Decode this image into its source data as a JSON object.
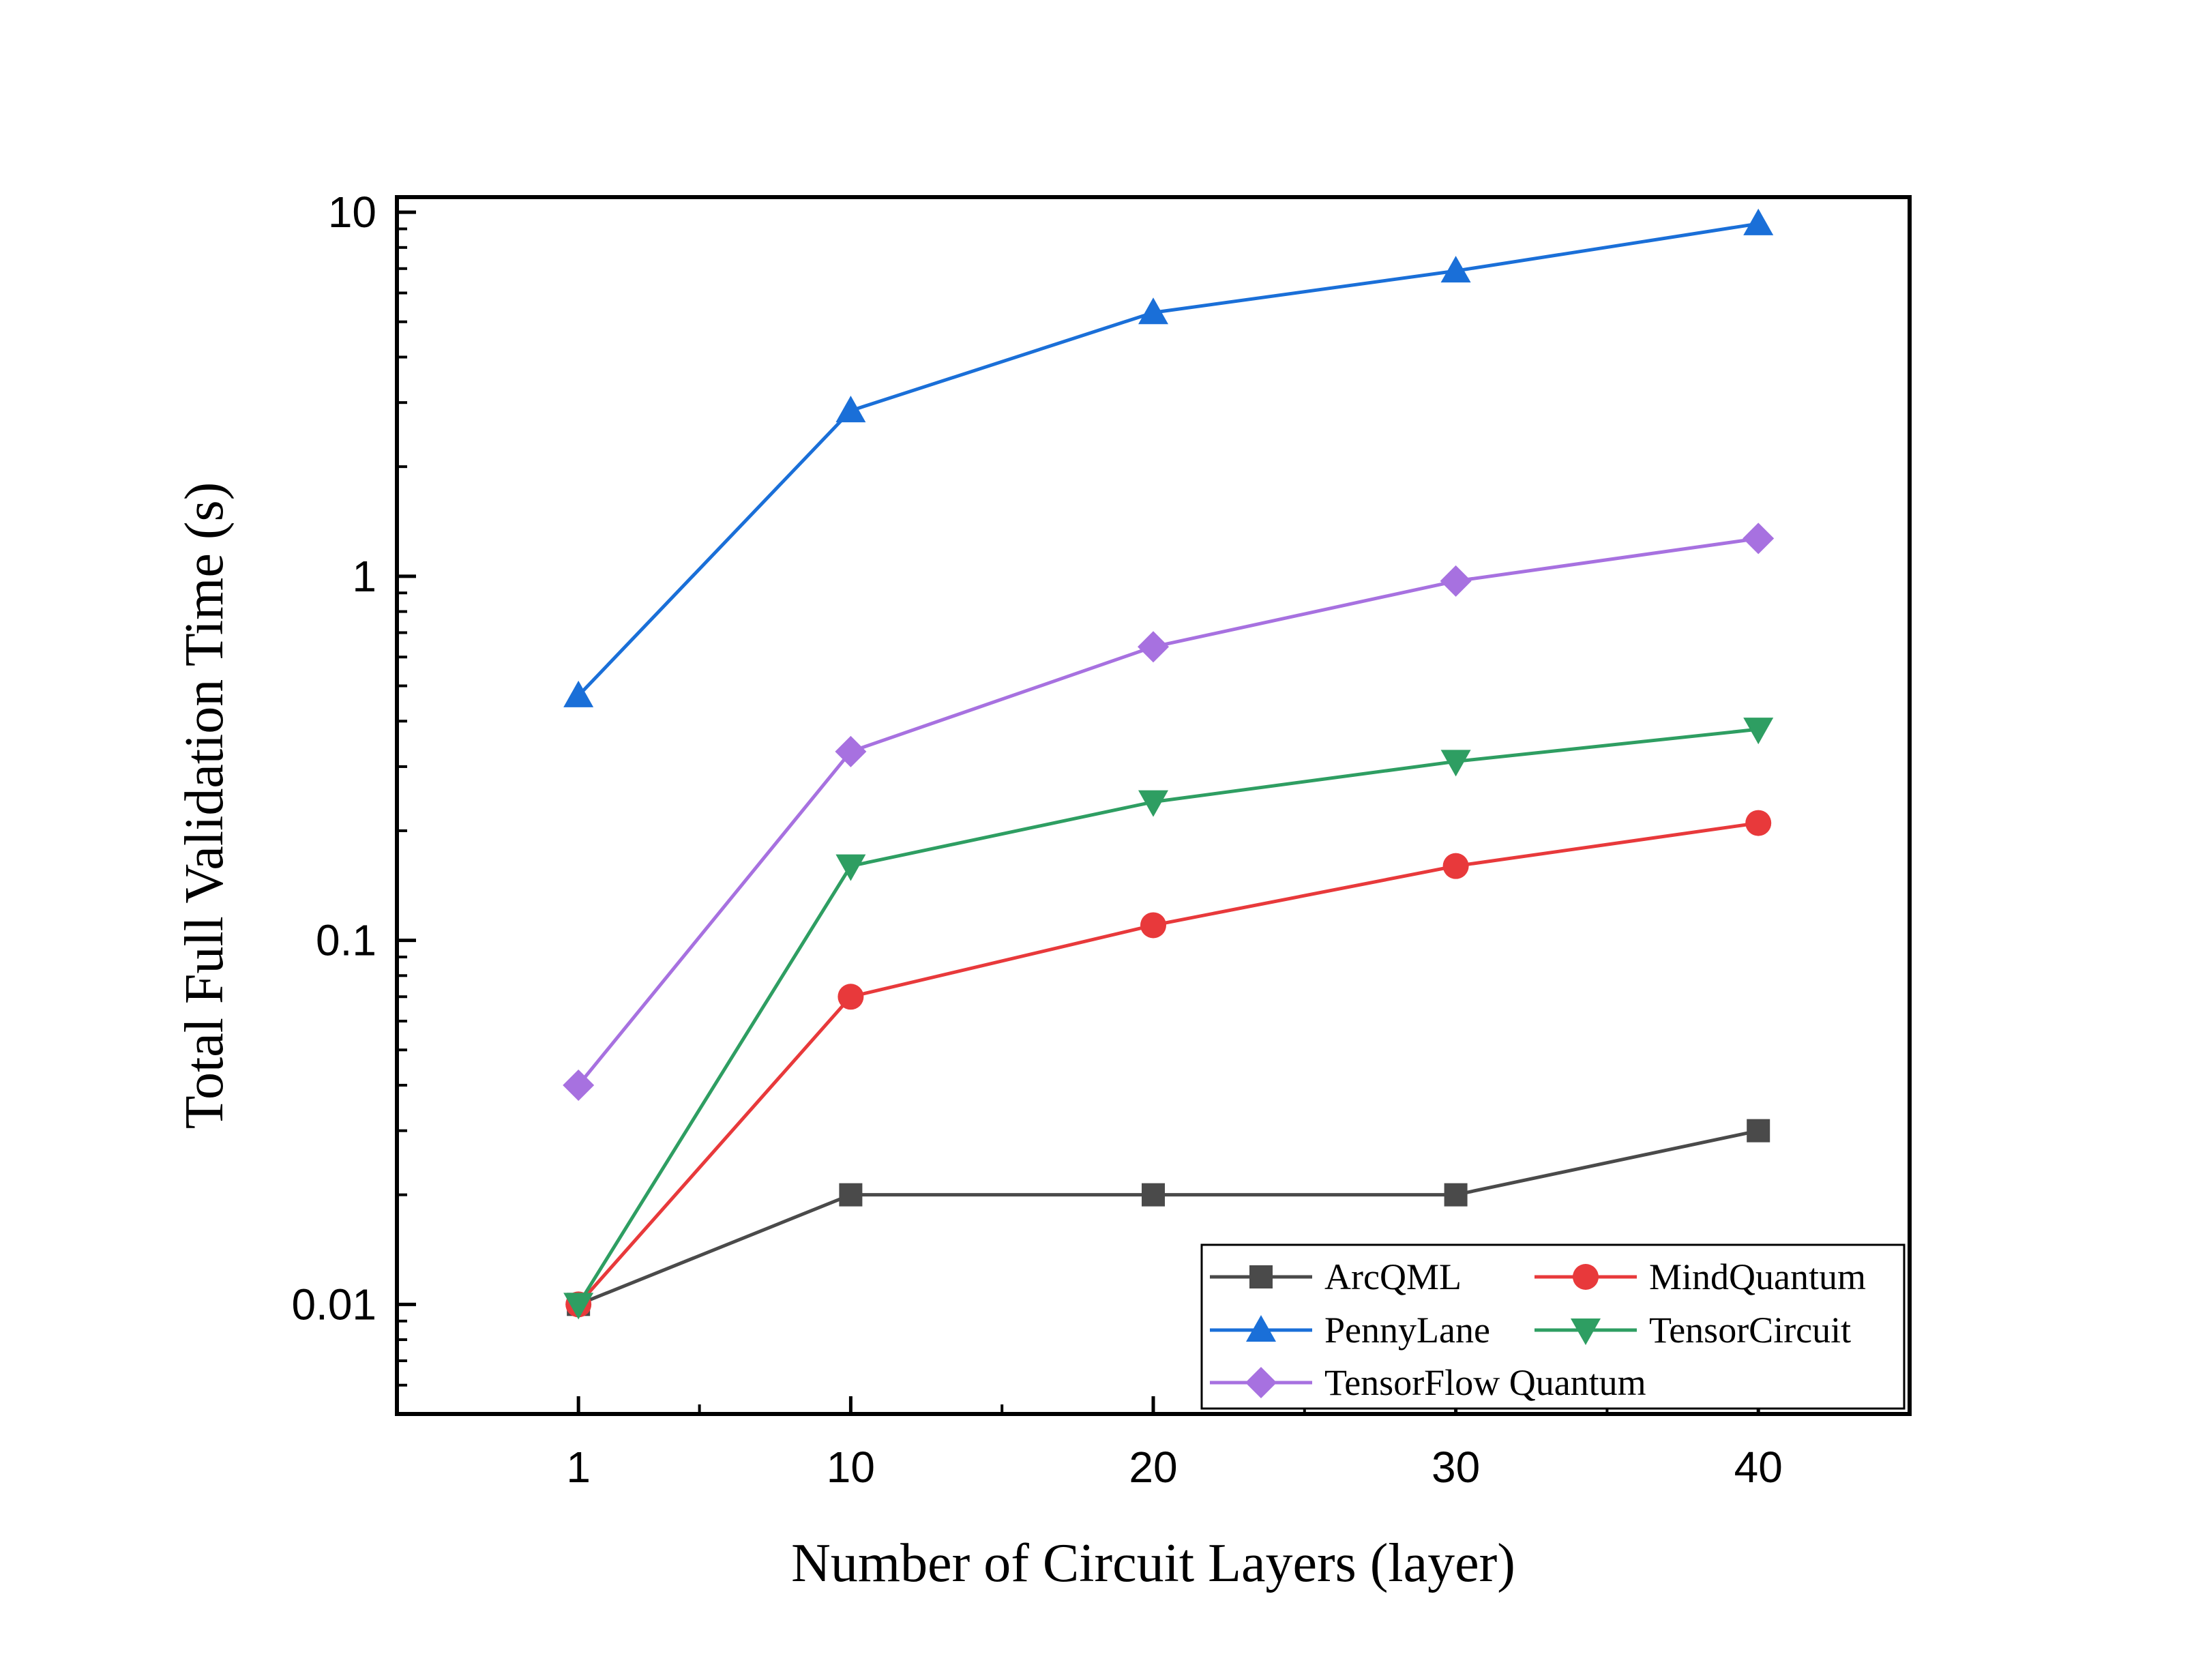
{
  "chart_data": {
    "type": "line",
    "title": "",
    "xlabel": "Number of Circuit Layers (layer)",
    "ylabel": "Total Full Validation Time (s)",
    "x": [
      1,
      10,
      20,
      30,
      40
    ],
    "x_ticks": [
      "1",
      "10",
      "20",
      "30",
      "40"
    ],
    "y_scale": "log",
    "ylim": [
      0.005,
      11
    ],
    "y_ticks": [
      "0.01",
      "0.1",
      "1",
      "10"
    ],
    "grid": false,
    "legend_position": "bottom-right",
    "series": [
      {
        "name": "ArcQML",
        "color": "#4a4a4a",
        "marker": "square",
        "values": [
          0.01,
          0.02,
          0.02,
          0.02,
          0.03
        ]
      },
      {
        "name": "MindQuantum",
        "color": "#e8393b",
        "marker": "circle",
        "values": [
          0.01,
          0.07,
          0.11,
          0.16,
          0.21
        ]
      },
      {
        "name": "PennyLane",
        "color": "#1a6fd8",
        "marker": "triangle-up",
        "values": [
          0.47,
          2.85,
          5.3,
          6.9,
          9.3
        ]
      },
      {
        "name": "TensorCircuit",
        "color": "#2e9e62",
        "marker": "triangle-down",
        "values": [
          0.01,
          0.16,
          0.24,
          0.31,
          0.38
        ]
      },
      {
        "name": "TensorFlow Quantum",
        "color": "#a771e0",
        "marker": "diamond",
        "values": [
          0.04,
          0.33,
          0.64,
          0.97,
          1.27
        ]
      }
    ]
  }
}
